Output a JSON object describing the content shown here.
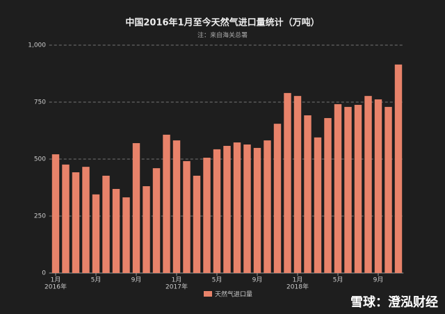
{
  "chart_data": {
    "type": "bar",
    "title": "中国2016年1月至今天然气进口量统计（万吨）",
    "subtitle": "注：来自海关总署",
    "categories": [
      "1月",
      null,
      null,
      null,
      "5月",
      null,
      null,
      null,
      "9月",
      null,
      null,
      null,
      "1月",
      null,
      null,
      null,
      "5月",
      null,
      null,
      null,
      "9月",
      null,
      null,
      null,
      "1月",
      null,
      null,
      null,
      "5月",
      null,
      null,
      null,
      "9月",
      null,
      null
    ],
    "years": [
      "2016年",
      null,
      null,
      null,
      null,
      null,
      null,
      null,
      null,
      null,
      null,
      null,
      "2017年",
      null,
      null,
      null,
      null,
      null,
      null,
      null,
      null,
      null,
      null,
      null,
      "2018年",
      null,
      null,
      null,
      null,
      null,
      null,
      null,
      null,
      null,
      null
    ],
    "series": [
      {
        "name": "天然气进口量",
        "color": "#e8836a",
        "values": [
          521,
          476,
          442,
          466,
          345,
          427,
          369,
          332,
          570,
          381,
          460,
          607,
          582,
          491,
          427,
          506,
          543,
          558,
          573,
          564,
          549,
          582,
          655,
          790,
          777,
          692,
          595,
          680,
          741,
          729,
          738,
          777,
          762,
          729,
          915
        ]
      }
    ],
    "ylim": [
      0,
      1000
    ],
    "yticks": [
      0,
      250,
      500,
      750,
      {
        "value": 1000,
        "label": "1,000"
      }
    ],
    "grid": true,
    "legend": "bottom",
    "watermark": "雪球：澄泓财经"
  }
}
